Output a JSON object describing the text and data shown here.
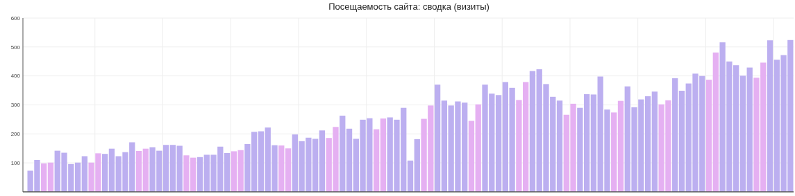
{
  "chart_data": {
    "type": "bar",
    "title": "Посещаемость сайта: сводка (визиты)",
    "categories": [
      null,
      null,
      null,
      null,
      null,
      null,
      null,
      null,
      null,
      null,
      null,
      null,
      null,
      null,
      null,
      null,
      null,
      null,
      null,
      null,
      null,
      null,
      null,
      null,
      null,
      null,
      null,
      null,
      null,
      null,
      null,
      null,
      null,
      null,
      null,
      null,
      null,
      null,
      null,
      null,
      null,
      null,
      null,
      null,
      null,
      null,
      null,
      null,
      null,
      null,
      null,
      null,
      null,
      null,
      null,
      null,
      null,
      null,
      null,
      null,
      null,
      null,
      null,
      null,
      null,
      null,
      null,
      null,
      null,
      null,
      null,
      null,
      null,
      null,
      null,
      null,
      null,
      null,
      null,
      null,
      null,
      null,
      null,
      null,
      null,
      null,
      null,
      null,
      null,
      null,
      null,
      null,
      null,
      null,
      null,
      null,
      null,
      null,
      null,
      null,
      null,
      null,
      null,
      null,
      null,
      null,
      null,
      null,
      null,
      null,
      null,
      null,
      null
    ],
    "values": [
      73,
      110,
      98,
      101,
      142,
      135,
      96,
      101,
      123,
      101,
      133,
      131,
      149,
      123,
      137,
      171,
      141,
      149,
      154,
      142,
      162,
      162,
      159,
      126,
      118,
      120,
      128,
      128,
      156,
      134,
      140,
      144,
      165,
      207,
      209,
      222,
      161,
      160,
      150,
      198,
      175,
      187,
      183,
      212,
      186,
      224,
      263,
      218,
      183,
      249,
      254,
      216,
      253,
      257,
      249,
      290,
      108,
      182,
      252,
      298,
      370,
      315,
      298,
      312,
      308,
      245,
      302,
      370,
      339,
      334,
      379,
      359,
      317,
      379,
      417,
      423,
      372,
      328,
      315,
      266,
      304,
      290,
      337,
      336,
      398,
      284,
      274,
      314,
      364,
      292,
      319,
      330,
      346,
      302,
      316,
      392,
      349,
      374,
      408,
      400,
      387,
      481,
      516,
      450,
      437,
      401,
      429,
      394,
      446,
      523,
      456,
      472,
      524
    ],
    "colors": [
      "#bcaff0",
      "#bcaff0",
      "#e5b0f2",
      "#e5b0f2",
      "#bcaff0",
      "#bcaff0",
      "#bcaff0",
      "#bcaff0",
      "#bcaff0",
      "#e5b0f2",
      "#e5b0f2",
      "#bcaff0",
      "#bcaff0",
      "#bcaff0",
      "#bcaff0",
      "#bcaff0",
      "#e5b0f2",
      "#e5b0f2",
      "#bcaff0",
      "#bcaff0",
      "#bcaff0",
      "#bcaff0",
      "#bcaff0",
      "#e5b0f2",
      "#e5b0f2",
      "#bcaff0",
      "#bcaff0",
      "#bcaff0",
      "#bcaff0",
      "#bcaff0",
      "#e5b0f2",
      "#e5b0f2",
      "#bcaff0",
      "#bcaff0",
      "#bcaff0",
      "#bcaff0",
      "#bcaff0",
      "#e5b0f2",
      "#e5b0f2",
      "#bcaff0",
      "#bcaff0",
      "#bcaff0",
      "#bcaff0",
      "#bcaff0",
      "#e5b0f2",
      "#e5b0f2",
      "#bcaff0",
      "#bcaff0",
      "#bcaff0",
      "#bcaff0",
      "#bcaff0",
      "#e5b0f2",
      "#e5b0f2",
      "#bcaff0",
      "#bcaff0",
      "#bcaff0",
      "#bcaff0",
      "#bcaff0",
      "#e5b0f2",
      "#e5b0f2",
      "#bcaff0",
      "#bcaff0",
      "#bcaff0",
      "#bcaff0",
      "#bcaff0",
      "#e5b0f2",
      "#e5b0f2",
      "#bcaff0",
      "#bcaff0",
      "#bcaff0",
      "#bcaff0",
      "#bcaff0",
      "#e5b0f2",
      "#e5b0f2",
      "#bcaff0",
      "#bcaff0",
      "#bcaff0",
      "#bcaff0",
      "#bcaff0",
      "#e5b0f2",
      "#e5b0f2",
      "#bcaff0",
      "#bcaff0",
      "#bcaff0",
      "#bcaff0",
      "#bcaff0",
      "#e5b0f2",
      "#e5b0f2",
      "#bcaff0",
      "#bcaff0",
      "#bcaff0",
      "#bcaff0",
      "#bcaff0",
      "#e5b0f2",
      "#e5b0f2",
      "#bcaff0",
      "#bcaff0",
      "#bcaff0",
      "#bcaff0",
      "#bcaff0",
      "#e5b0f2",
      "#e5b0f2",
      "#bcaff0",
      "#bcaff0",
      "#bcaff0",
      "#bcaff0",
      "#bcaff0",
      "#e5b0f2",
      "#e5b0f2",
      "#bcaff0",
      "#bcaff0",
      "#bcaff0",
      "#bcaff0"
    ],
    "ylim": [
      0,
      600
    ],
    "yticks": [
      100,
      200,
      300,
      400,
      500,
      600
    ],
    "grid": true
  }
}
